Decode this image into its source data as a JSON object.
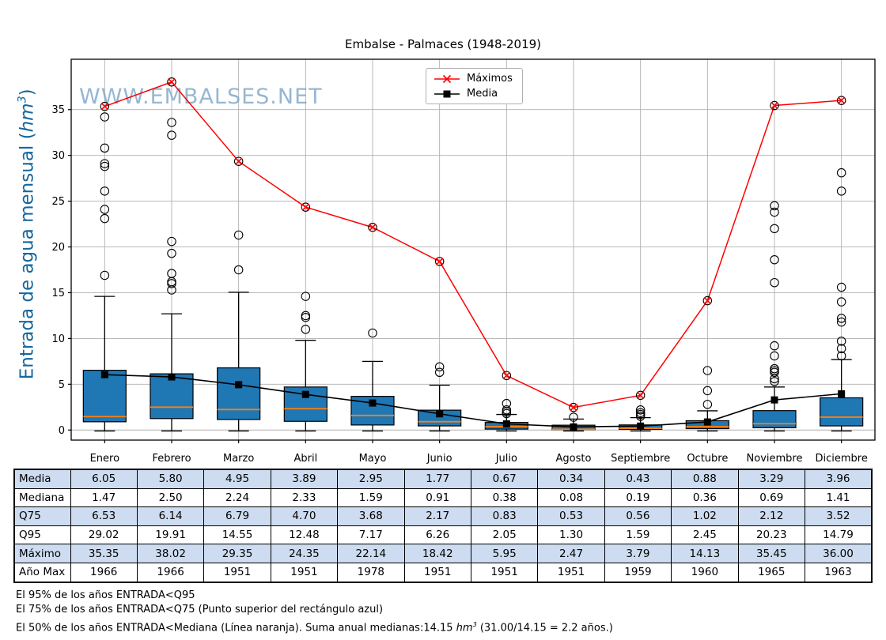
{
  "chart_data": {
    "type": "boxplot",
    "title": "Embalse - Palmaces (1948-2019)",
    "watermark": "WWW.EMBALSES.NET",
    "ylabel": {
      "prefix": "Entrada de agua mensual (",
      "unit": "hm",
      "exponent": "3",
      "suffix": ")"
    },
    "categories": [
      "Enero",
      "Febrero",
      "Marzo",
      "Abril",
      "Mayo",
      "Junio",
      "Julio",
      "Agosto",
      "Septiembre",
      "Octubre",
      "Noviembre",
      "Diciembre"
    ],
    "yticks": [
      0,
      5,
      10,
      15,
      20,
      25,
      30,
      35
    ],
    "ylim": [
      -1.1,
      40.5
    ],
    "grid": true,
    "legend": [
      {
        "label": "Máximos",
        "color": "#ff0000",
        "marker": "x"
      },
      {
        "label": "Media",
        "color": "#000000",
        "marker": "square"
      }
    ],
    "series": [
      {
        "name": "Máximos",
        "values": [
          35.35,
          38.02,
          29.35,
          24.35,
          22.14,
          18.42,
          5.95,
          2.47,
          3.79,
          14.13,
          35.45,
          36.0
        ]
      },
      {
        "name": "Media",
        "values": [
          6.05,
          5.8,
          4.95,
          3.89,
          2.95,
          1.77,
          0.67,
          0.34,
          0.43,
          0.88,
          3.29,
          3.96
        ]
      }
    ],
    "boxes": {
      "median": [
        1.47,
        2.5,
        2.24,
        2.33,
        1.59,
        0.91,
        0.38,
        0.08,
        0.19,
        0.36,
        0.69,
        1.41
      ],
      "q25": [
        0.9,
        1.25,
        1.15,
        0.95,
        0.55,
        0.45,
        0.1,
        0.03,
        0.08,
        0.15,
        0.25,
        0.45
      ],
      "q75": [
        6.53,
        6.14,
        6.79,
        4.7,
        3.68,
        2.17,
        0.83,
        0.53,
        0.56,
        1.02,
        2.12,
        3.52
      ],
      "q95": [
        29.02,
        19.91,
        14.55,
        12.48,
        7.17,
        6.26,
        2.05,
        1.3,
        1.59,
        2.45,
        20.23,
        14.79
      ],
      "whisker_low": [
        -0.1,
        -0.1,
        -0.1,
        -0.1,
        -0.1,
        -0.1,
        -0.1,
        -0.1,
        -0.1,
        -0.1,
        -0.1,
        -0.1
      ],
      "whisker_high": [
        14.6,
        12.7,
        15.05,
        9.8,
        7.5,
        4.9,
        1.7,
        1.2,
        1.35,
        2.1,
        4.7,
        7.7
      ],
      "outliers": [
        [
          34.2,
          30.8,
          29.1,
          28.8,
          26.1,
          24.1,
          23.1,
          16.9
        ],
        [
          33.6,
          32.2,
          20.6,
          19.3,
          17.1,
          16.2,
          16.0,
          15.3
        ],
        [
          21.3,
          17.5
        ],
        [
          14.6,
          12.5,
          12.3,
          11.0
        ],
        [
          10.6
        ],
        [
          6.9,
          6.3
        ],
        [
          2.9,
          2.2,
          2.0,
          1.8
        ],
        [
          1.4
        ],
        [
          2.2,
          1.9,
          1.7,
          1.5
        ],
        [
          6.5,
          4.3,
          2.8
        ],
        [
          24.5,
          23.8,
          22.0,
          18.6,
          16.1,
          9.2,
          8.1,
          6.7,
          6.5,
          6.3,
          5.6,
          5.3
        ],
        [
          28.1,
          26.1,
          15.6,
          14.0,
          12.2,
          11.8,
          9.7,
          8.9,
          8.1
        ]
      ]
    },
    "colors": {
      "box_fill": "#1f77b4",
      "box_edge": "#000000",
      "median_line": "#ff7f0e",
      "max_line": "#ff0000",
      "mean_line": "#000000",
      "grid": "#b0b0b0",
      "ylabel_text": "#15679e",
      "watermark": "#7ca6c9",
      "table_row_shade": "#cddcf0"
    }
  },
  "table": {
    "rows": [
      {
        "label": "Media",
        "shaded": true,
        "values": [
          "6.05",
          "5.80",
          "4.95",
          "3.89",
          "2.95",
          "1.77",
          "0.67",
          "0.34",
          "0.43",
          "0.88",
          "3.29",
          "3.96"
        ]
      },
      {
        "label": "Mediana",
        "shaded": false,
        "values": [
          "1.47",
          "2.50",
          "2.24",
          "2.33",
          "1.59",
          "0.91",
          "0.38",
          "0.08",
          "0.19",
          "0.36",
          "0.69",
          "1.41"
        ]
      },
      {
        "label": "Q75",
        "shaded": true,
        "values": [
          "6.53",
          "6.14",
          "6.79",
          "4.70",
          "3.68",
          "2.17",
          "0.83",
          "0.53",
          "0.56",
          "1.02",
          "2.12",
          "3.52"
        ]
      },
      {
        "label": "Q95",
        "shaded": false,
        "values": [
          "29.02",
          "19.91",
          "14.55",
          "12.48",
          "7.17",
          "6.26",
          "2.05",
          "1.30",
          "1.59",
          "2.45",
          "20.23",
          "14.79"
        ]
      },
      {
        "label": "Máximo",
        "shaded": true,
        "values": [
          "35.35",
          "38.02",
          "29.35",
          "24.35",
          "22.14",
          "18.42",
          "5.95",
          "2.47",
          "3.79",
          "14.13",
          "35.45",
          "36.00"
        ]
      },
      {
        "label": "Año Max",
        "shaded": false,
        "values": [
          "1966",
          "1966",
          "1951",
          "1951",
          "1978",
          "1951",
          "1951",
          "1951",
          "1959",
          "1960",
          "1965",
          "1963"
        ]
      }
    ]
  },
  "footnotes": {
    "line1": "El 95% de los años ENTRADA<Q95",
    "line2": "El 75% de los años ENTRADA<Q75 (Punto superior del rectángulo azul)",
    "line3": {
      "pre": "El 50% de los años ENTRADA<Mediana (Línea naranja). Suma anual medianas:14.15 ",
      "unit": "hm",
      "exponent": "3",
      "post": " (31.00/14.15 = 2.2 años.)"
    }
  }
}
